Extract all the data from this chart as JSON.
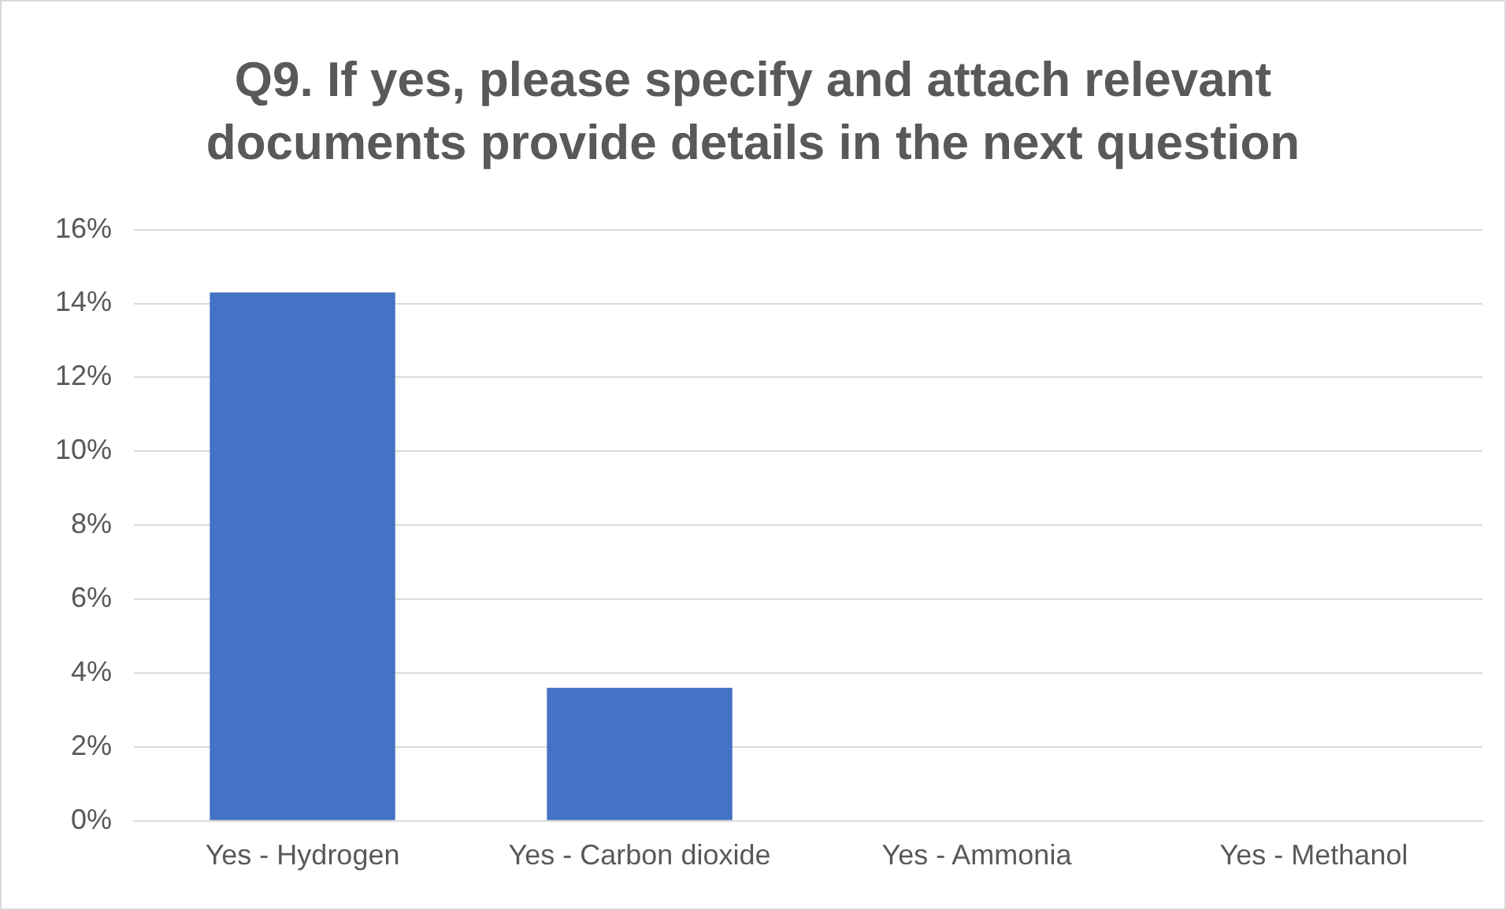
{
  "chart_data": {
    "type": "bar",
    "title": "Q9. If yes, please specify and attach relevant documents provide details in the next question",
    "categories": [
      "Yes - Hydrogen",
      "Yes - Carbon dioxide",
      "Yes - Ammonia",
      "Yes - Methanol"
    ],
    "values": [
      14.3,
      3.6,
      0,
      0
    ],
    "color": "#4472c4",
    "ylim": [
      0,
      16
    ],
    "yticks": [
      {
        "value": 0,
        "label": "0%"
      },
      {
        "value": 2,
        "label": "2%"
      },
      {
        "value": 4,
        "label": "4%"
      },
      {
        "value": 6,
        "label": "6%"
      },
      {
        "value": 8,
        "label": "8%"
      },
      {
        "value": 10,
        "label": "10%"
      },
      {
        "value": 12,
        "label": "12%"
      },
      {
        "value": 14,
        "label": "14%"
      },
      {
        "value": 16,
        "label": "16%"
      }
    ],
    "grid": "y"
  }
}
